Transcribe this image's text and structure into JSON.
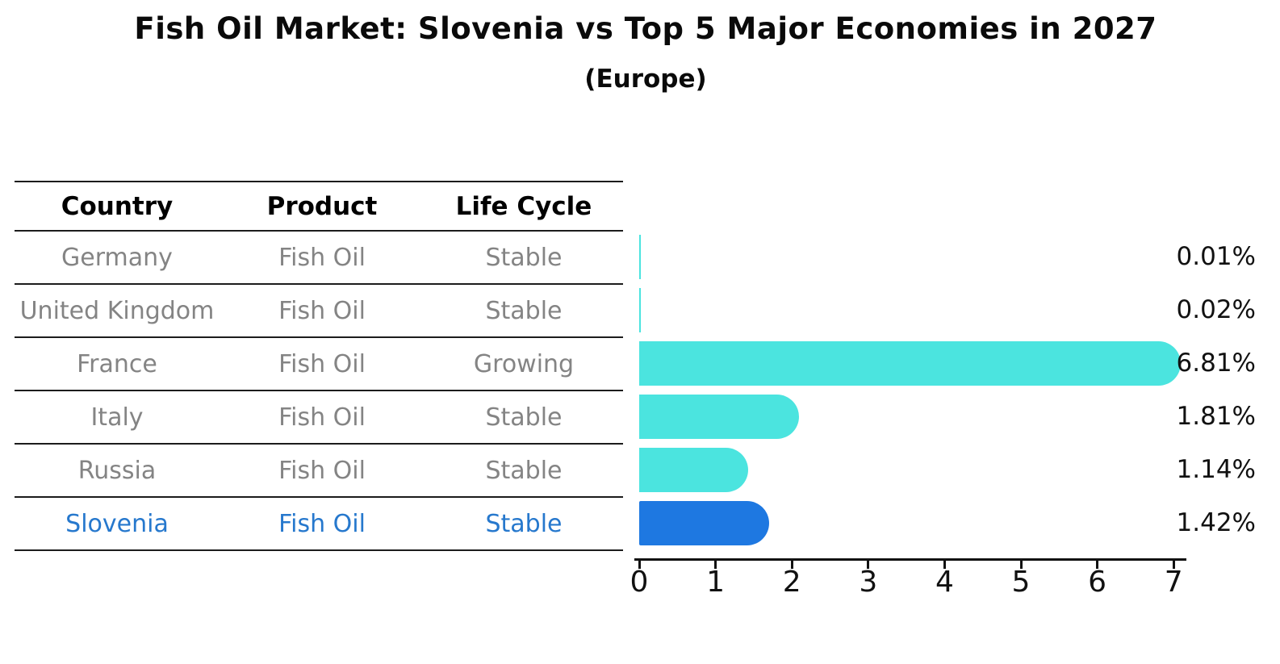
{
  "title": "Fish Oil Market: Slovenia vs Top 5 Major Economies in 2027",
  "subtitle": "(Europe)",
  "table": {
    "headers": [
      "Country",
      "Product",
      "Life Cycle"
    ],
    "rows": [
      {
        "country": "Germany",
        "product": "Fish Oil",
        "life_cycle": "Stable",
        "highlight": false
      },
      {
        "country": "United Kingdom",
        "product": "Fish Oil",
        "life_cycle": "Stable",
        "highlight": false
      },
      {
        "country": "France",
        "product": "Fish Oil",
        "life_cycle": "Growing",
        "highlight": false
      },
      {
        "country": "Italy",
        "product": "Fish Oil",
        "life_cycle": "Stable",
        "highlight": false
      },
      {
        "country": "Russia",
        "product": "Fish Oil",
        "life_cycle": "Stable",
        "highlight": false
      },
      {
        "country": "Slovenia",
        "product": "Fish Oil",
        "life_cycle": "Stable",
        "highlight": true
      }
    ]
  },
  "chart_data": {
    "type": "bar",
    "orientation": "horizontal",
    "title": "Fish Oil Market: Slovenia vs Top 5 Major Economies in 2027",
    "subtitle": "(Europe)",
    "categories": [
      "Germany",
      "United Kingdom",
      "France",
      "Italy",
      "Russia",
      "Slovenia"
    ],
    "values": [
      0.01,
      0.02,
      6.81,
      1.81,
      1.14,
      1.42
    ],
    "value_labels": [
      "0.01%",
      "0.02%",
      "6.81%",
      "1.81%",
      "1.14%",
      "1.42%"
    ],
    "xlabel": "",
    "ylabel": "",
    "xlim": [
      0,
      7
    ],
    "x_ticks": [
      0,
      1,
      2,
      3,
      4,
      5,
      6,
      7
    ],
    "grid": false,
    "legend": false,
    "highlight_index": 5
  },
  "colors": {
    "bar_color": "#4BE4DF",
    "highlight_bar_color": "#1E78E1",
    "highlight_text_color": "#2678CD",
    "cell_text_color": "#848484",
    "label_text_color": "#111111"
  }
}
